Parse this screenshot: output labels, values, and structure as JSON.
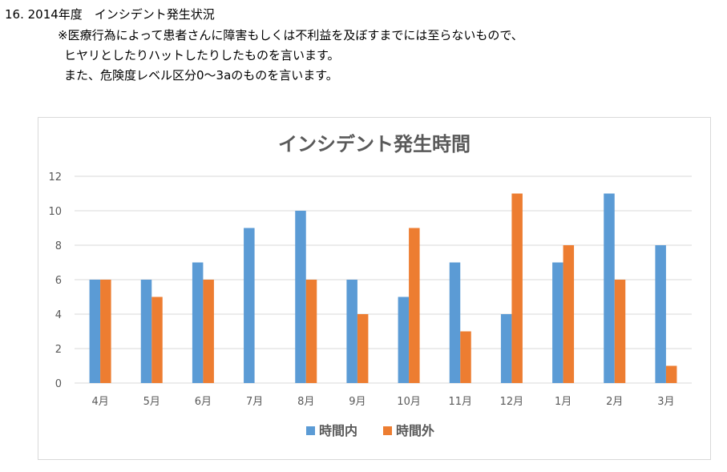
{
  "page": {
    "heading": "16. 2014年度　インシデント発生状況",
    "notes": [
      "※医療行為によって患者さんに障害もしくは不利益を及ぼすまでには至らないもので、",
      "ヒヤリとしたりハットしたりしたものを言います。",
      "また、危険度レベル区分0〜3aのものを言います。"
    ]
  },
  "chart_data": {
    "type": "bar",
    "title": "インシデント発生時間",
    "categories": [
      "4月",
      "5月",
      "6月",
      "7月",
      "8月",
      "9月",
      "10月",
      "11月",
      "12月",
      "1月",
      "2月",
      "3月"
    ],
    "series": [
      {
        "name": "時間内",
        "color": "#5b9bd5",
        "values": [
          6,
          6,
          7,
          9,
          10,
          6,
          5,
          7,
          4,
          7,
          11,
          8
        ]
      },
      {
        "name": "時間外",
        "color": "#ed7d31",
        "values": [
          6,
          5,
          6,
          0,
          6,
          4,
          9,
          3,
          11,
          8,
          6,
          1
        ]
      }
    ],
    "ylim": [
      0,
      12
    ],
    "yticks": [
      0,
      2,
      4,
      6,
      8,
      10,
      12
    ],
    "grid": true,
    "legend": "bottom",
    "colors": {
      "gridline": "#d9d9d9",
      "axis_text": "#595959",
      "title": "#595959"
    }
  }
}
